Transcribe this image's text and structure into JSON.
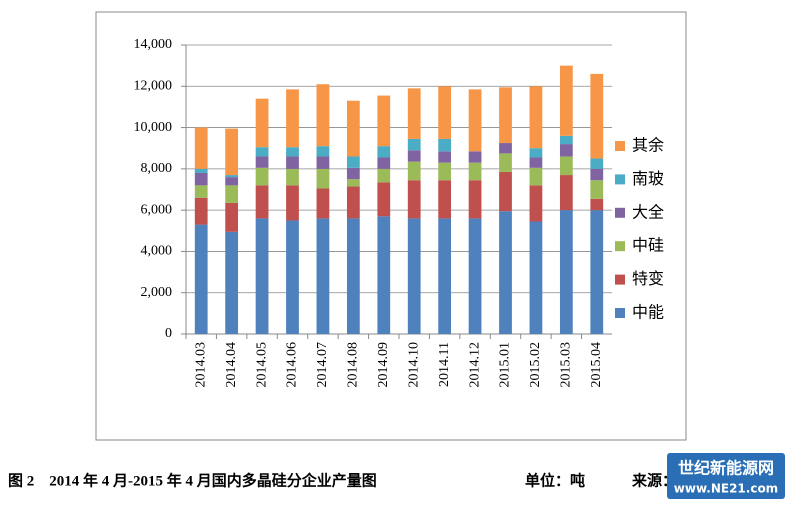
{
  "chart_data": {
    "type": "stacked_bar",
    "categories": [
      "2014.03",
      "2014.04",
      "2014.05",
      "2014.06",
      "2014.07",
      "2014.08",
      "2014.09",
      "2014.10",
      "2014.11",
      "2014.12",
      "2015.01",
      "2015.02",
      "2015.03",
      "2015.04"
    ],
    "series": [
      {
        "name": "中能",
        "color": "#4f81bd",
        "values": [
          5300,
          4950,
          5600,
          5500,
          5600,
          5600,
          5700,
          5600,
          5600,
          5600,
          5950,
          5450,
          6000,
          6000
        ]
      },
      {
        "name": "特变",
        "color": "#c0504d",
        "values": [
          1300,
          1400,
          1600,
          1700,
          1450,
          1550,
          1650,
          1850,
          1850,
          1850,
          1900,
          1750,
          1700,
          550
        ]
      },
      {
        "name": "中硅",
        "color": "#9bbb59",
        "values": [
          600,
          850,
          850,
          800,
          950,
          350,
          650,
          900,
          850,
          850,
          900,
          850,
          900,
          900
        ]
      },
      {
        "name": "大全",
        "color": "#8064a2",
        "values": [
          600,
          400,
          550,
          600,
          600,
          550,
          550,
          550,
          550,
          550,
          500,
          500,
          600,
          550
        ]
      },
      {
        "name": "南玻",
        "color": "#4bacc6",
        "values": [
          200,
          100,
          450,
          450,
          500,
          550,
          550,
          550,
          600,
          0,
          0,
          450,
          400,
          500
        ]
      },
      {
        "name": "其余",
        "color": "#f79646",
        "values": [
          2000,
          2250,
          2350,
          2800,
          3000,
          2700,
          2450,
          2450,
          2550,
          3000,
          2700,
          3000,
          3400,
          4100
        ]
      }
    ],
    "ylim": [
      0,
      14000
    ],
    "yticks": [
      0,
      {
        "value": 2000,
        "label": "2,000"
      },
      {
        "value": 4000,
        "label": "4,000"
      },
      {
        "value": 6000,
        "label": "6,000"
      },
      {
        "value": 8000,
        "label": "8,000"
      },
      {
        "value": 10000,
        "label": "10,000"
      },
      {
        "value": 12000,
        "label": "12,000"
      },
      {
        "value": 14000,
        "label": "14,000"
      }
    ],
    "grid": true,
    "legend": "right",
    "caption": "图 2　2014 年 4 月-2015 年 4 月国内多晶硅分企业产量图",
    "unit": "单位：吨",
    "source": "来源：",
    "watermark": {
      "title": "世纪新能源网",
      "url": "www.NE21.com"
    }
  }
}
